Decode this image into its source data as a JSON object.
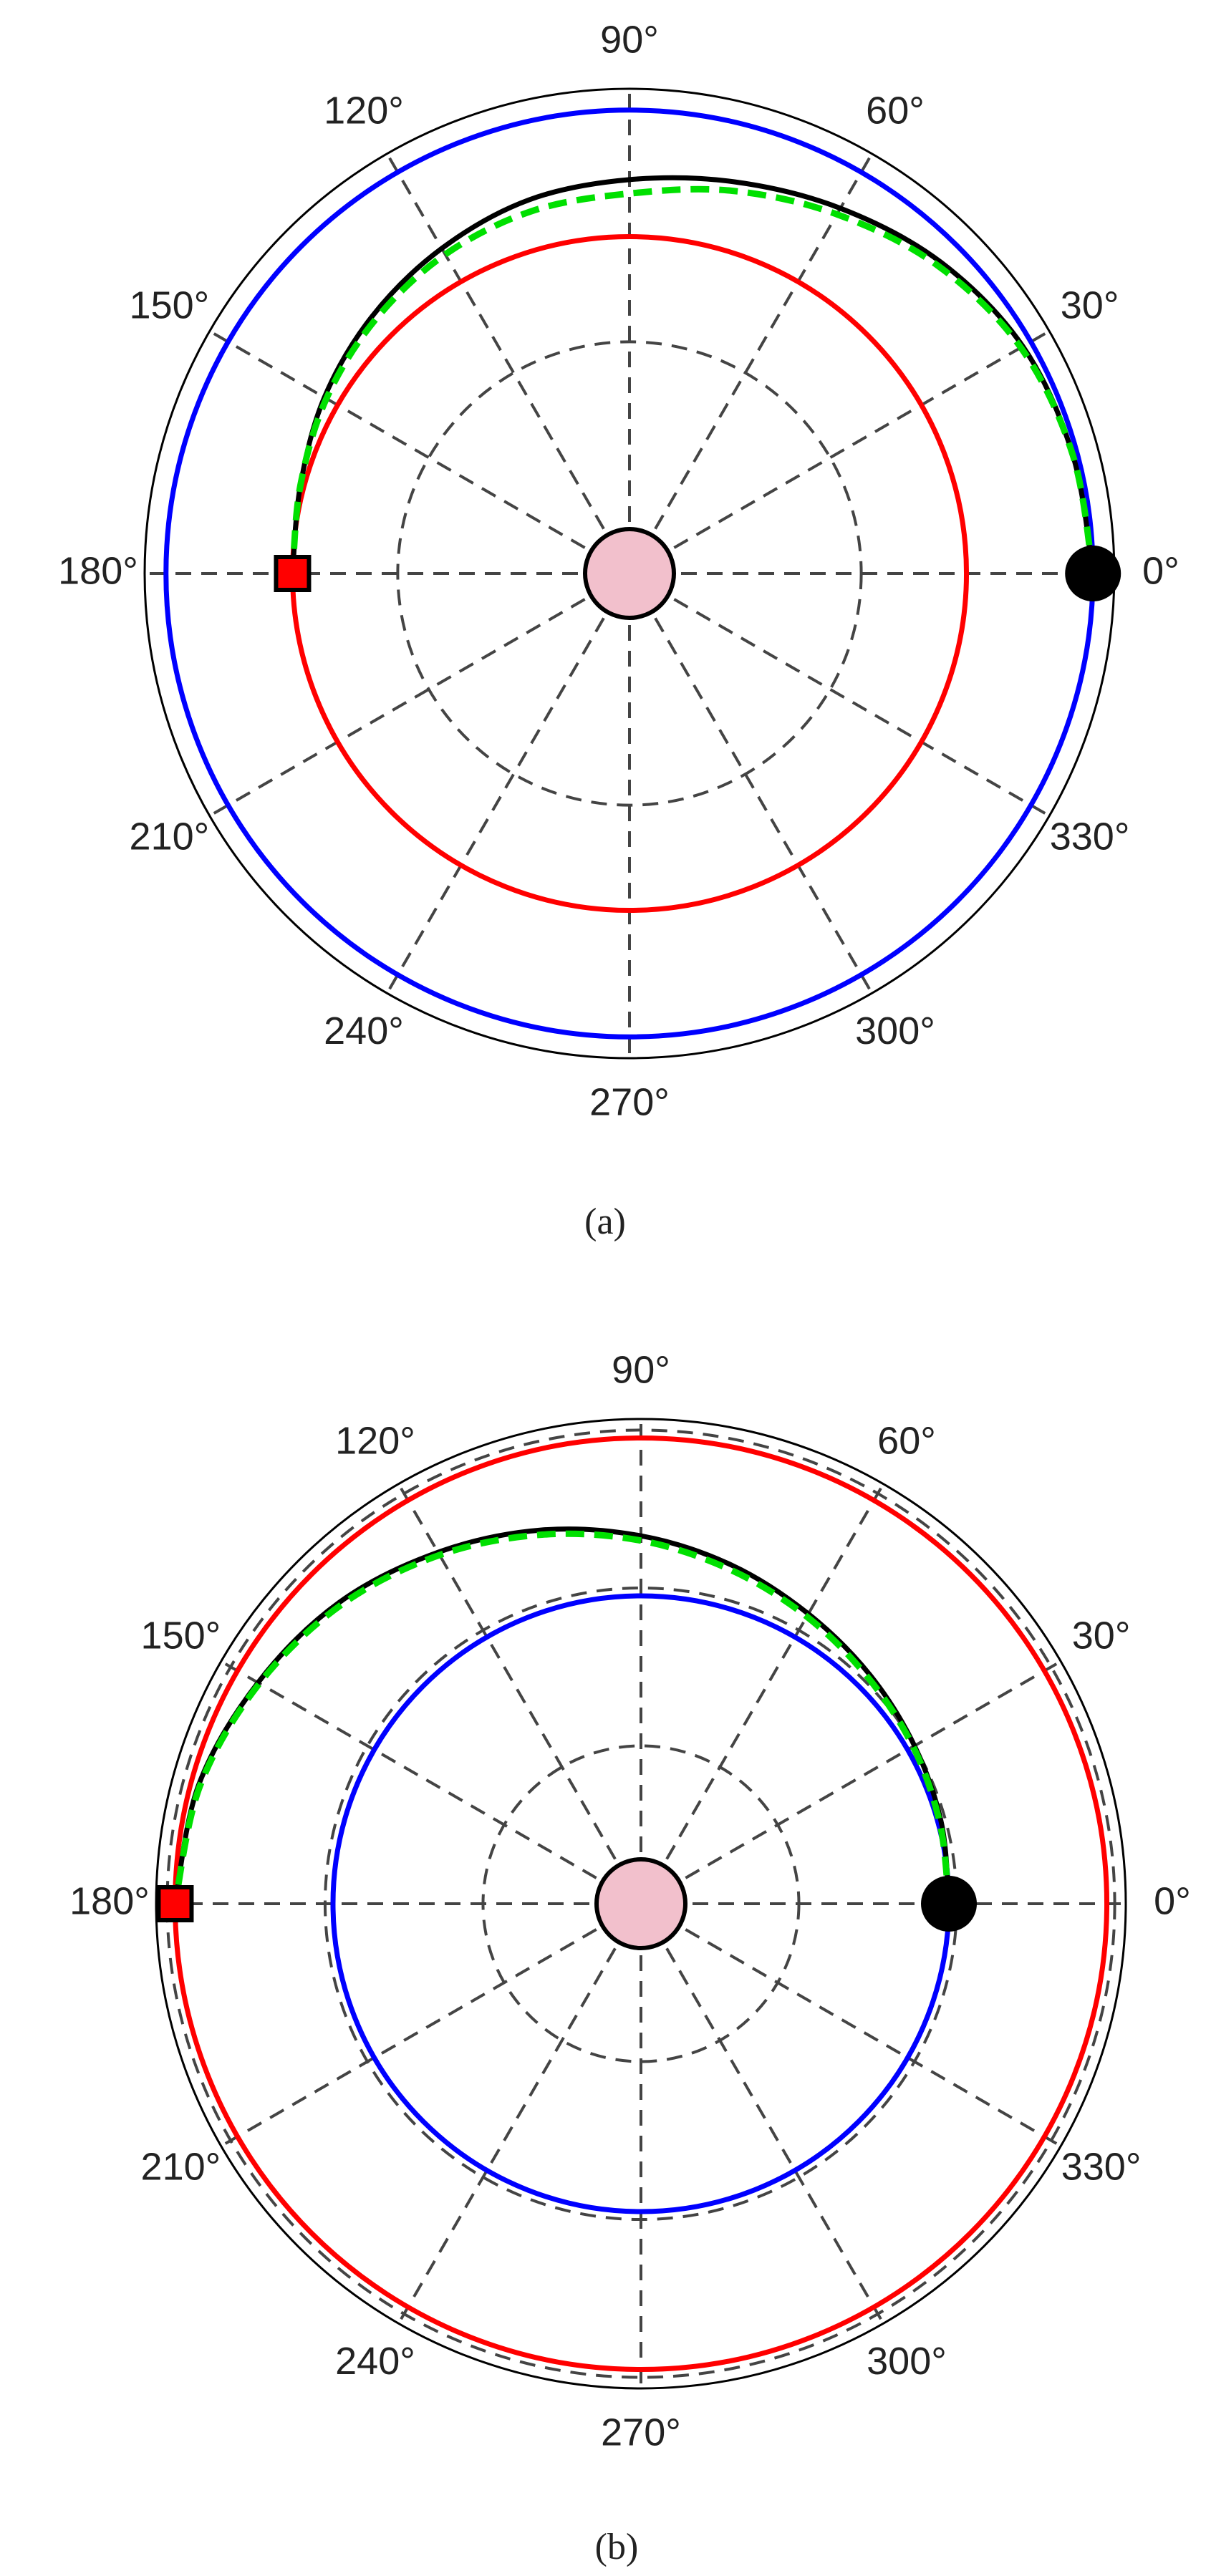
{
  "chart_data": [
    {
      "type": "polar",
      "caption": "(a)",
      "thetaticks": [
        {
          "value": 0,
          "label": "0°"
        },
        {
          "value": 30,
          "label": "30°"
        },
        {
          "value": 60,
          "label": "60°"
        },
        {
          "value": 90,
          "label": "90°"
        },
        {
          "value": 120,
          "label": "120°"
        },
        {
          "value": 150,
          "label": "150°"
        },
        {
          "value": 180,
          "label": "180°"
        },
        {
          "value": 210,
          "label": "210°"
        },
        {
          "value": 240,
          "label": "240°"
        },
        {
          "value": 270,
          "label": "270°"
        },
        {
          "value": 300,
          "label": "300°"
        },
        {
          "value": 330,
          "label": "330°"
        }
      ],
      "rlim": [
        0,
        1.046
      ],
      "rticks": [
        0.5,
        1.0
      ],
      "circles": [
        {
          "color": "#0000ff",
          "r": 1.0
        },
        {
          "color": "#ff0000",
          "r": 0.727
        }
      ],
      "series": [
        {
          "color": "#000000",
          "dashed": false,
          "theta": [
            0,
            15,
            30,
            45,
            60,
            75,
            90,
            105,
            120,
            135,
            150,
            165,
            180
          ],
          "r": [
            1.0,
            0.99,
            0.98,
            0.95,
            0.91,
            0.875,
            0.85,
            0.835,
            0.81,
            0.785,
            0.76,
            0.735,
            0.727
          ]
        },
        {
          "color": "#00e000",
          "dashed": true,
          "theta": [
            0,
            15,
            30,
            45,
            60,
            75,
            90,
            105,
            120,
            135,
            150,
            165,
            180
          ],
          "r": [
            1.0,
            0.99,
            0.975,
            0.94,
            0.895,
            0.855,
            0.82,
            0.81,
            0.795,
            0.775,
            0.755,
            0.735,
            0.727
          ]
        }
      ]
    },
    {
      "type": "polar",
      "caption": "(b)",
      "thetaticks": [
        {
          "value": 0,
          "label": "0°"
        },
        {
          "value": 30,
          "label": "30°"
        },
        {
          "value": 60,
          "label": "60°"
        },
        {
          "value": 90,
          "label": "90°"
        },
        {
          "value": 120,
          "label": "120°"
        },
        {
          "value": 150,
          "label": "150°"
        },
        {
          "value": 180,
          "label": "180°"
        },
        {
          "value": 210,
          "label": "210°"
        },
        {
          "value": 240,
          "label": "240°"
        },
        {
          "value": 270,
          "label": "270°"
        },
        {
          "value": 300,
          "label": "300°"
        },
        {
          "value": 330,
          "label": "330°"
        }
      ],
      "rlim": [
        0,
        3.07
      ],
      "rticks": [
        1,
        2,
        3
      ],
      "circles": [
        {
          "color": "#0000ff",
          "r": 1.95
        },
        {
          "color": "#ff0000",
          "r": 2.95
        }
      ],
      "series": [
        {
          "color": "#000000",
          "dashed": false,
          "theta": [
            0,
            15,
            30,
            45,
            60,
            75,
            90,
            105,
            120,
            135,
            150,
            165,
            180
          ],
          "r": [
            1.95,
            1.97,
            2.0,
            2.05,
            2.12,
            2.22,
            2.33,
            2.45,
            2.57,
            2.7,
            2.8,
            2.9,
            2.95
          ]
        },
        {
          "color": "#00e000",
          "dashed": true,
          "theta": [
            0,
            15,
            30,
            45,
            60,
            75,
            90,
            105,
            120,
            135,
            150,
            165,
            180
          ],
          "r": [
            1.95,
            1.96,
            1.99,
            2.03,
            2.1,
            2.19,
            2.3,
            2.42,
            2.55,
            2.68,
            2.79,
            2.89,
            2.95
          ]
        }
      ]
    }
  ]
}
